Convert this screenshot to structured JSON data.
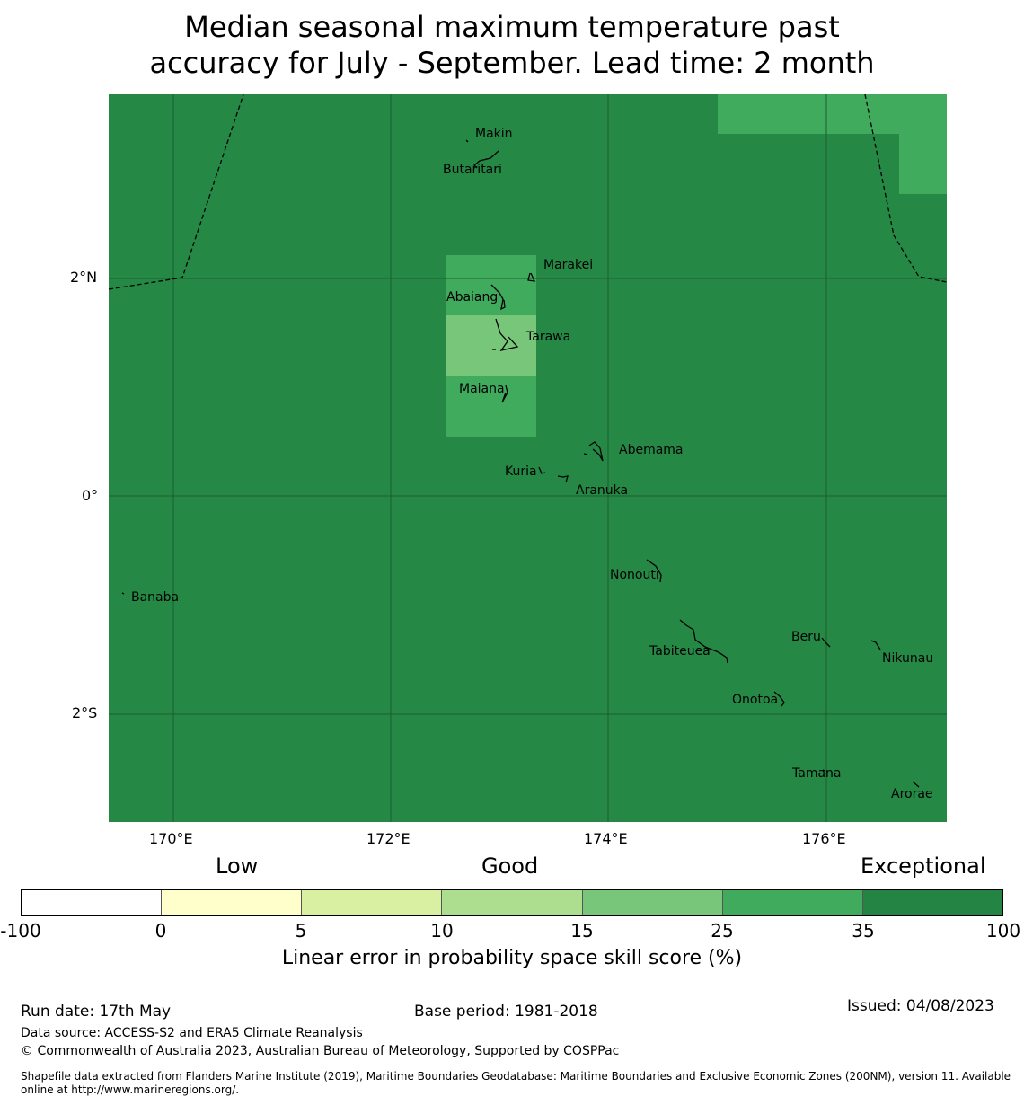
{
  "title": {
    "line1": "Median seasonal maximum temperature past",
    "line2": "accuracy for July - September. Lead time: 2 month"
  },
  "map": {
    "background_color": "#268845",
    "lon_ticks": [
      "170°E",
      "172°E",
      "174°E",
      "176°E"
    ],
    "lat_ticks": [
      "2°N",
      "0°",
      "2°S"
    ],
    "islands": [
      {
        "name": "Makin"
      },
      {
        "name": "Butaritari"
      },
      {
        "name": "Marakei"
      },
      {
        "name": "Abaiang"
      },
      {
        "name": "Tarawa"
      },
      {
        "name": "Maiana"
      },
      {
        "name": "Abemama"
      },
      {
        "name": "Kuria"
      },
      {
        "name": "Aranuka"
      },
      {
        "name": "Nonouti"
      },
      {
        "name": "Banaba"
      },
      {
        "name": "Beru"
      },
      {
        "name": "Tabiteuea"
      },
      {
        "name": "Nikunau"
      },
      {
        "name": "Onotoa"
      },
      {
        "name": "Tamana"
      },
      {
        "name": "Arorae"
      }
    ]
  },
  "legend": {
    "categories": {
      "low": "Low",
      "good": "Good",
      "exceptional": "Exceptional"
    },
    "ticks": [
      "-100",
      "0",
      "5",
      "10",
      "15",
      "25",
      "35",
      "100"
    ],
    "colors": [
      "#ffffff",
      "#ffffcc",
      "#d9f0a3",
      "#addd8e",
      "#78c679",
      "#41ab5d",
      "#238443"
    ],
    "title": "Linear error in probability space skill score (%)"
  },
  "footer": {
    "run_date": "Run date: 17th May",
    "base_period": "Base period: 1981-2018",
    "issued": "Issued: 04/08/2023",
    "data_source": "Data source: ACCESS-S2 and ERA5 Climate Reanalysis",
    "copyright": "© Commonwealth of Australia 2023, Australian Bureau of Meteorology, Supported by COSPPac",
    "shapefile": "Shapefile data extracted from Flanders Marine Institute (2019), Maritime Boundaries Geodatabase: Maritime Boundaries and Exclusive Economic Zones (200NM), version 11. Available online at http://www.marineregions.org/."
  }
}
